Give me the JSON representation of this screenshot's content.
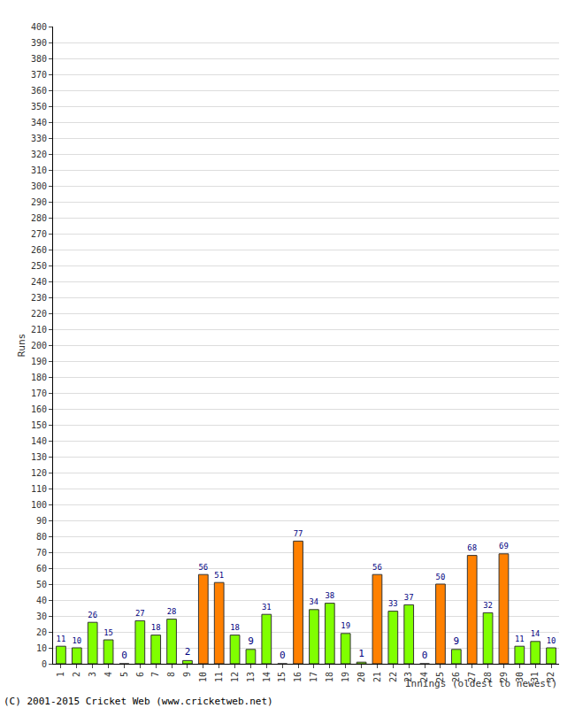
{
  "chart_data": {
    "type": "bar",
    "x_label": "Innings (oldest to newest)",
    "y_label": "Runs",
    "annotations": [
      "(C) 2001-2015 Cricket Web (www.cricketweb.net)"
    ],
    "categories": [
      "1",
      "2",
      "3",
      "4",
      "5",
      "6",
      "7",
      "8",
      "9",
      "10",
      "11",
      "12",
      "13",
      "14",
      "15",
      "16",
      "17",
      "18",
      "19",
      "20",
      "21",
      "22",
      "23",
      "24",
      "25",
      "26",
      "27",
      "28",
      "29",
      "30",
      "31",
      "32"
    ],
    "values": [
      11,
      10,
      26,
      15,
      0,
      27,
      18,
      28,
      2,
      56,
      51,
      18,
      9,
      31,
      0,
      77,
      34,
      38,
      19,
      1,
      56,
      33,
      37,
      0,
      50,
      9,
      68,
      32,
      69,
      11,
      14,
      10
    ],
    "colors": [
      "#80ff00",
      "#80ff00",
      "#80ff00",
      "#80ff00",
      "#80ff00",
      "#80ff00",
      "#80ff00",
      "#80ff00",
      "#80ff00",
      "#ff8000",
      "#ff8000",
      "#80ff00",
      "#80ff00",
      "#80ff00",
      "#80ff00",
      "#ff8000",
      "#80ff00",
      "#80ff00",
      "#80ff00",
      "#80ff00",
      "#ff8000",
      "#80ff00",
      "#80ff00",
      "#80ff00",
      "#ff8000",
      "#80ff00",
      "#ff8000",
      "#80ff00",
      "#ff8000",
      "#80ff00",
      "#80ff00",
      "#80ff00"
    ],
    "ylim": [
      0,
      400
    ],
    "yticks": [
      0,
      10,
      20,
      30,
      40,
      50,
      60,
      70,
      80,
      90,
      100,
      110,
      120,
      130,
      140,
      150,
      160,
      170,
      180,
      190,
      200,
      210,
      220,
      230,
      240,
      250,
      260,
      270,
      280,
      290,
      300,
      310,
      320,
      330,
      340,
      350,
      360,
      370,
      380,
      390,
      400
    ],
    "grid": true,
    "data_labels": true
  }
}
